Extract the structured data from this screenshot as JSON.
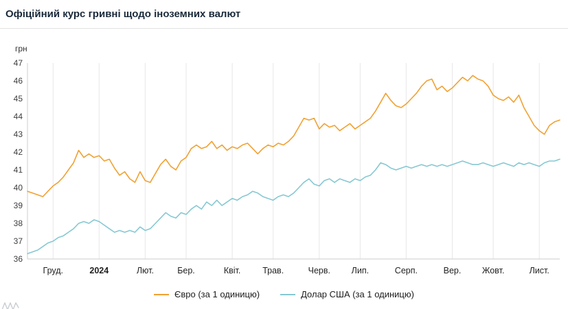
{
  "page": {
    "title": "Офіційний курс гривні щодо іноземних валют"
  },
  "chart_data": {
    "type": "line",
    "title": "Офіційний курс гривні щодо іноземних валют",
    "xlabel": "",
    "ylabel": "грн",
    "ylim": [
      36,
      47
    ],
    "y_ticks": [
      36,
      37,
      38,
      39,
      40,
      41,
      42,
      43,
      44,
      45,
      46,
      47
    ],
    "grid": "vertical",
    "legend_position": "bottom-center",
    "colors": {
      "grid": "#e7e7e7",
      "axis": "#cccccc",
      "tick_text": "#3c3c3c"
    },
    "x_ticks": [
      {
        "label": "Груд.",
        "index": 5,
        "bold": false
      },
      {
        "label": "2024",
        "index": 14,
        "bold": true
      },
      {
        "label": "Лют.",
        "index": 23,
        "bold": false
      },
      {
        "label": "Бер.",
        "index": 31,
        "bold": false
      },
      {
        "label": "Квіт.",
        "index": 40,
        "bold": false
      },
      {
        "label": "Трав.",
        "index": 48,
        "bold": false
      },
      {
        "label": "Черв.",
        "index": 57,
        "bold": false
      },
      {
        "label": "Лип.",
        "index": 65,
        "bold": false
      },
      {
        "label": "Серп.",
        "index": 74,
        "bold": false
      },
      {
        "label": "Вер.",
        "index": 83,
        "bold": false
      },
      {
        "label": "Жовт.",
        "index": 91,
        "bold": false
      },
      {
        "label": "Лист.",
        "index": 100,
        "bold": false
      }
    ],
    "series": [
      {
        "name": "Євро (за 1 одиницю)",
        "color": "#f0a132",
        "values": [
          39.8,
          39.7,
          39.6,
          39.5,
          39.8,
          40.1,
          40.3,
          40.6,
          41.0,
          41.4,
          42.1,
          41.7,
          41.9,
          41.7,
          41.8,
          41.5,
          41.6,
          41.1,
          40.7,
          40.9,
          40.5,
          40.3,
          40.9,
          40.4,
          40.3,
          40.8,
          41.3,
          41.6,
          41.2,
          41.0,
          41.5,
          41.7,
          42.2,
          42.4,
          42.2,
          42.3,
          42.6,
          42.2,
          42.4,
          42.1,
          42.3,
          42.2,
          42.4,
          42.5,
          42.2,
          41.9,
          42.2,
          42.4,
          42.3,
          42.5,
          42.4,
          42.6,
          42.9,
          43.4,
          43.9,
          43.8,
          43.9,
          43.3,
          43.6,
          43.4,
          43.5,
          43.2,
          43.4,
          43.6,
          43.3,
          43.5,
          43.7,
          43.9,
          44.3,
          44.8,
          45.3,
          44.9,
          44.6,
          44.5,
          44.7,
          45.0,
          45.3,
          45.7,
          46.0,
          46.1,
          45.5,
          45.7,
          45.4,
          45.6,
          45.9,
          46.2,
          46.0,
          46.3,
          46.1,
          46.0,
          45.7,
          45.2,
          45.0,
          44.9,
          45.1,
          44.8,
          45.2,
          44.5,
          44.0,
          43.5,
          43.2,
          43.0,
          43.5,
          43.7,
          43.8
        ]
      },
      {
        "name": "Долар США (за 1 одиницю)",
        "color": "#85c8d2",
        "values": [
          36.3,
          36.4,
          36.5,
          36.7,
          36.9,
          37.0,
          37.2,
          37.3,
          37.5,
          37.7,
          38.0,
          38.1,
          38.0,
          38.2,
          38.1,
          37.9,
          37.7,
          37.5,
          37.6,
          37.5,
          37.6,
          37.5,
          37.8,
          37.6,
          37.7,
          38.0,
          38.3,
          38.6,
          38.4,
          38.3,
          38.6,
          38.5,
          38.8,
          39.0,
          38.8,
          39.2,
          39.0,
          39.3,
          39.0,
          39.2,
          39.4,
          39.3,
          39.5,
          39.6,
          39.8,
          39.7,
          39.5,
          39.4,
          39.3,
          39.5,
          39.6,
          39.5,
          39.7,
          40.0,
          40.3,
          40.5,
          40.2,
          40.1,
          40.4,
          40.5,
          40.3,
          40.5,
          40.4,
          40.3,
          40.5,
          40.4,
          40.6,
          40.7,
          41.0,
          41.4,
          41.3,
          41.1,
          41.0,
          41.1,
          41.2,
          41.1,
          41.2,
          41.3,
          41.2,
          41.3,
          41.2,
          41.3,
          41.2,
          41.3,
          41.4,
          41.5,
          41.4,
          41.3,
          41.3,
          41.4,
          41.3,
          41.2,
          41.3,
          41.4,
          41.3,
          41.2,
          41.4,
          41.3,
          41.4,
          41.3,
          41.2,
          41.4,
          41.5,
          41.5,
          41.6
        ]
      }
    ]
  }
}
